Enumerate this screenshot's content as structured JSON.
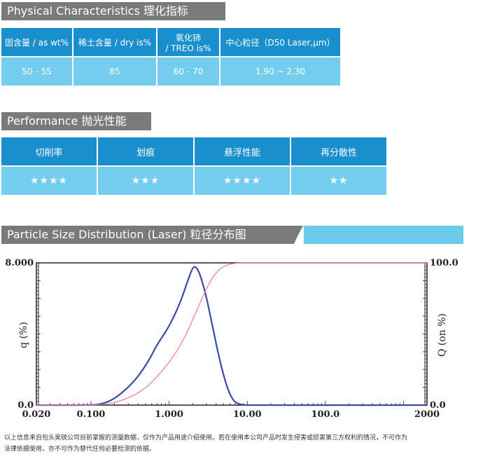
{
  "physical": {
    "title": "Physical Characteristics  理化指标",
    "headers": [
      "固含量 / as wt%",
      "稀土含量 / dry is%",
      "氧化铈\n/ TREO is%",
      "中心粒径（D50 Laser,μm）"
    ],
    "header3_line1": "氧化铈",
    "header3_line2": "/ TREO is%",
    "values": [
      "50 - 55",
      "85",
      "60 - 70",
      "1.90 ~ 2.30"
    ]
  },
  "performance": {
    "title": "Performance  抛光性能",
    "headers": [
      "切削率",
      "划痕",
      "悬浮性能",
      "再分散性"
    ],
    "ratings": [
      4,
      3,
      4,
      2
    ],
    "star_text": [
      "★★★★",
      "★★★",
      "★★★★",
      "★★"
    ]
  },
  "psd": {
    "title": "Particle Size Distribution (Laser)  粒径分布图"
  },
  "chart_data": {
    "type": "line",
    "xscale": "log",
    "x_ticks": [
      "0.020",
      "0.100",
      "1.000",
      "10.00",
      "100.0",
      "2000"
    ],
    "x_tick_values": [
      0.02,
      0.1,
      1,
      10,
      100,
      2000
    ],
    "y_left_label": "q (%)",
    "y_left_ticks": [
      "8.000",
      "0.0"
    ],
    "ylim_left": [
      0,
      8
    ],
    "y_right_label": "Q (on %)",
    "y_right_ticks": [
      "100.0",
      "0.0"
    ],
    "ylim_right": [
      0,
      100
    ],
    "series": [
      {
        "axis": "left",
        "color": "#3a4aa8",
        "x": [
          0.02,
          0.1,
          0.13,
          0.17,
          0.22,
          0.3,
          0.4,
          0.55,
          0.7,
          0.9,
          1.1,
          1.4,
          1.7,
          2.0,
          2.2,
          2.5,
          3.0,
          3.6,
          4.5,
          5.5,
          6.5,
          7.5,
          9.0,
          10,
          100,
          2000
        ],
        "y": [
          0,
          0,
          0.05,
          0.2,
          0.5,
          1.0,
          1.6,
          2.5,
          3.4,
          4.1,
          4.8,
          5.8,
          6.9,
          7.75,
          7.8,
          7.35,
          6.1,
          4.4,
          2.4,
          1.0,
          0.3,
          0.08,
          0.01,
          0,
          0,
          0
        ]
      },
      {
        "axis": "right",
        "color": "#e87d98",
        "x": [
          0.02,
          0.1,
          0.13,
          0.17,
          0.22,
          0.3,
          0.4,
          0.55,
          0.7,
          0.9,
          1.2,
          1.6,
          2.0,
          2.5,
          3.0,
          3.6,
          4.5,
          5.5,
          6.5,
          8,
          10,
          100,
          2000
        ],
        "y": [
          0,
          0,
          0.3,
          1.0,
          2.5,
          5,
          8.5,
          14,
          20,
          27,
          36,
          48,
          60,
          72,
          82,
          90,
          96,
          98.5,
          99.5,
          100,
          100,
          100,
          100
        ]
      }
    ]
  },
  "footnote": {
    "line1": "以上信息来自包头昊锐公司目前掌握的测量数据，仅作为产品用途介绍使用。若在使用本公司产品时发生侵害或损害第三方权利的情况，不可作为",
    "line2": "法律依据使用，亦不可作为替代任何必要检测的依据。"
  }
}
